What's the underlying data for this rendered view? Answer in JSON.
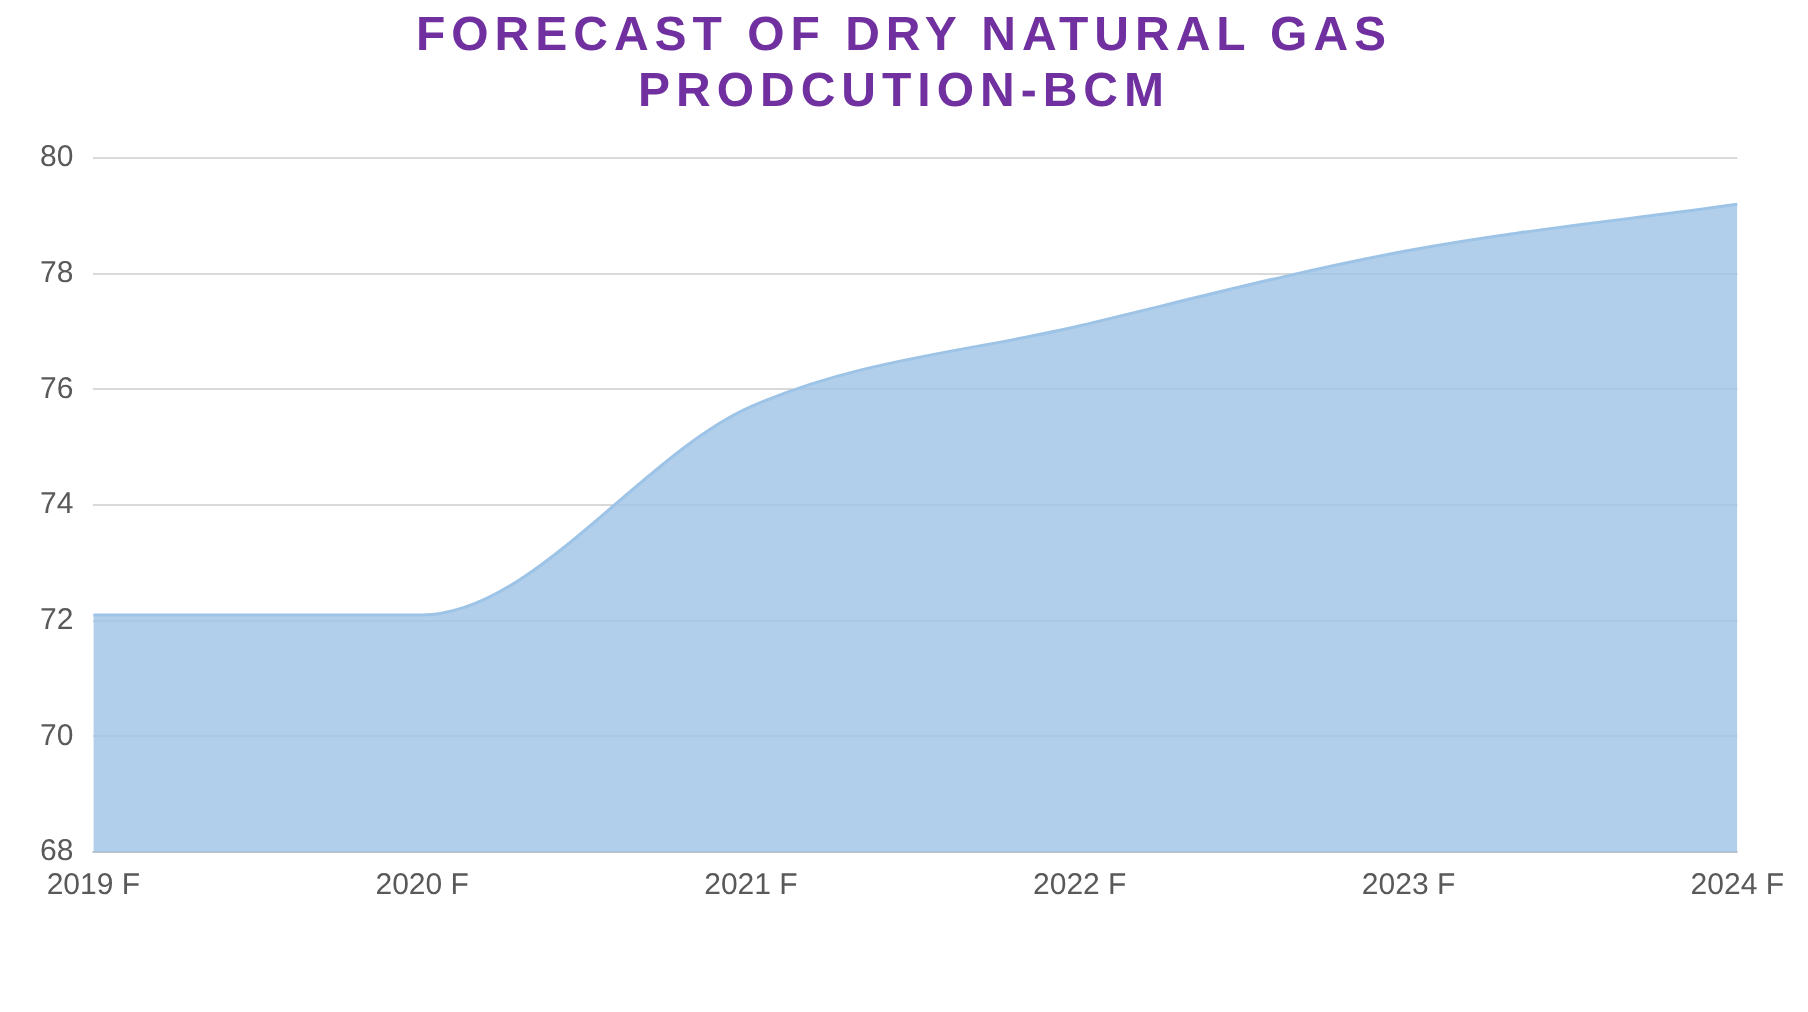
{
  "chart_data": {
    "type": "area",
    "title": "FORECAST OF DRY NATURAL GAS PRODCUTION-BCM",
    "categories": [
      "2019 F",
      "2020 F",
      "2021 F",
      "2022 F",
      "2023 F",
      "2024 F"
    ],
    "series": [
      {
        "color": "#9dc3e6",
        "values": [
          72.1,
          72.1,
          75.7,
          77.1,
          78.4,
          79.2
        ]
      }
    ],
    "ylim": [
      68,
      80
    ],
    "yticks": [
      68,
      70,
      72,
      74,
      76,
      78,
      80
    ],
    "grid": "y",
    "legend": false
  }
}
